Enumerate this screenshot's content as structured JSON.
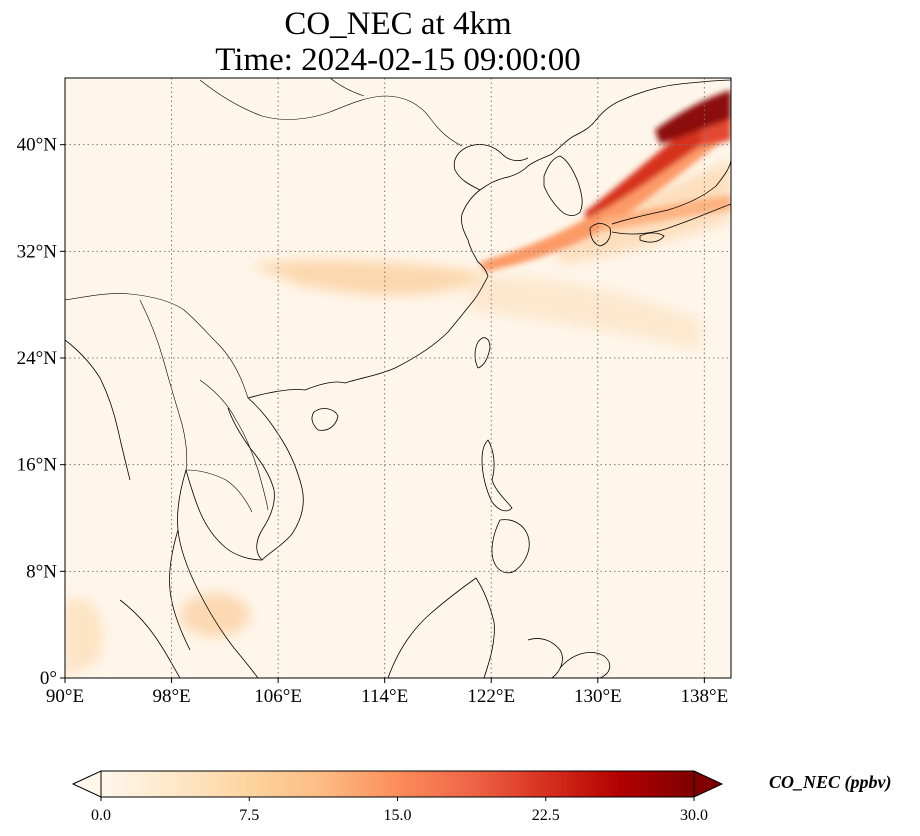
{
  "title": {
    "line1": "CO_NEC at 4km",
    "line2": "Time: 2024-02-15 09:00:00"
  },
  "map": {
    "extent": {
      "lon": [
        90,
        140
      ],
      "lat": [
        0,
        45
      ]
    },
    "gridlines": "dotted",
    "lon_ticks": [
      {
        "value": 90,
        "label": "90°E"
      },
      {
        "value": 98,
        "label": "98°E"
      },
      {
        "value": 106,
        "label": "106°E"
      },
      {
        "value": 114,
        "label": "114°E"
      },
      {
        "value": 122,
        "label": "122°E"
      },
      {
        "value": 130,
        "label": "130°E"
      },
      {
        "value": 138,
        "label": "138°E"
      }
    ],
    "lat_ticks": [
      {
        "value": 0,
        "label": "0°"
      },
      {
        "value": 8,
        "label": "8°N"
      },
      {
        "value": 16,
        "label": "16°N"
      },
      {
        "value": 24,
        "label": "24°N"
      },
      {
        "value": 32,
        "label": "32°N"
      },
      {
        "value": 40,
        "label": "40°N"
      }
    ]
  },
  "colorbar": {
    "label": "CO_NEC (ppbv)",
    "range": [
      0,
      30
    ],
    "extend": "both",
    "colormap": [
      "#fff7ec",
      "#fee8c8",
      "#fdd49e",
      "#fdbb84",
      "#fc8d59",
      "#ef6548",
      "#d7301f",
      "#b30000",
      "#7f0000"
    ],
    "ticks": [
      {
        "value": 0,
        "label": "0.0"
      },
      {
        "value": 7.5,
        "label": "7.5"
      },
      {
        "value": 15,
        "label": "15.0"
      },
      {
        "value": 22.5,
        "label": "22.5"
      },
      {
        "value": 30,
        "label": "30.0"
      }
    ]
  }
}
